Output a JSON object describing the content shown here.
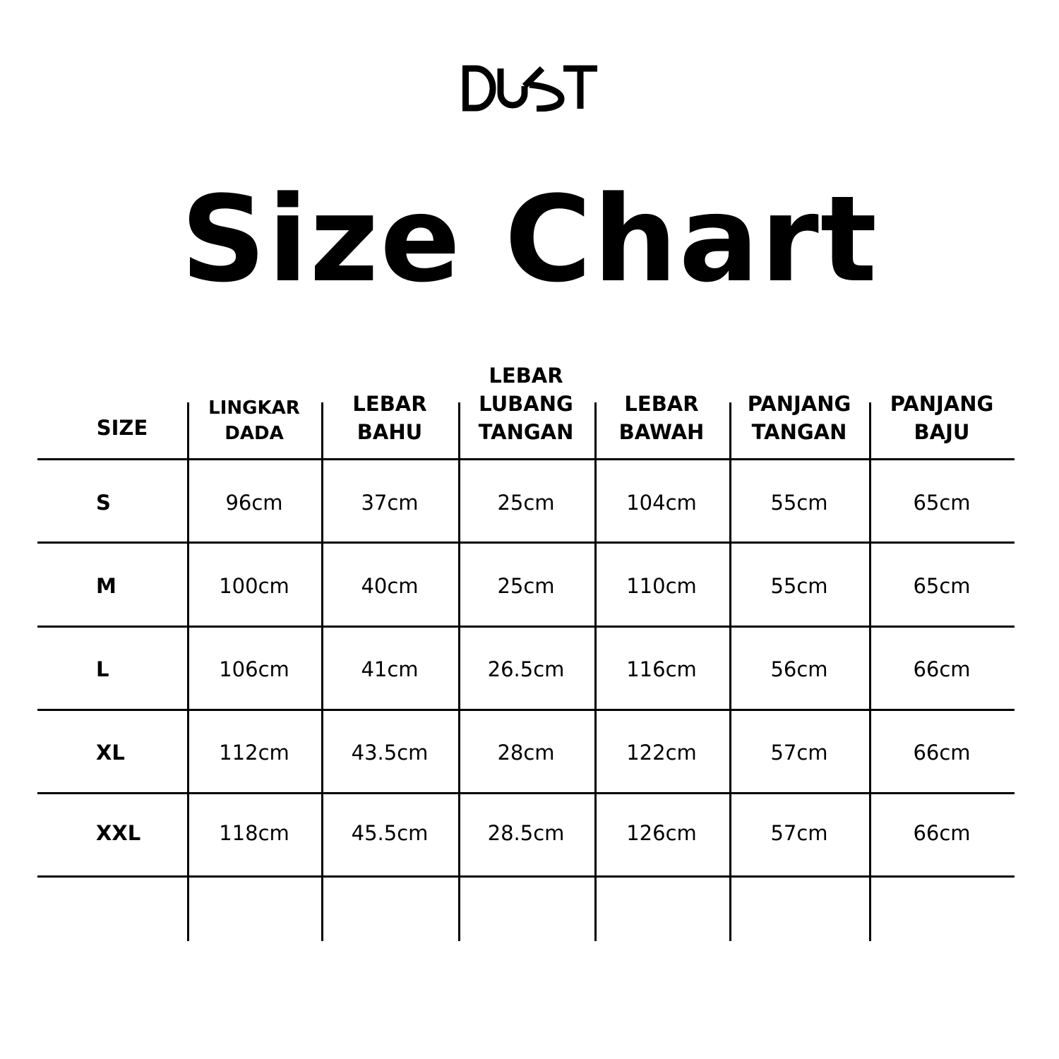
{
  "brand": {
    "logo_text": "DUST"
  },
  "title": "Size Chart",
  "table": {
    "headers": [
      "SIZE",
      "LINGKAR DADA",
      "LEBAR BAHU",
      "LEBAR LUBANG TANGAN",
      "LEBAR BAWAH",
      "PANJANG TANGAN",
      "PANJANG BAJU"
    ],
    "header_lines": [
      [
        "SIZE"
      ],
      [
        "LINGKAR",
        "DADA"
      ],
      [
        "LEBAR",
        "BAHU"
      ],
      [
        "LEBAR",
        "LUBANG",
        "TANGAN"
      ],
      [
        "LEBAR",
        "BAWAH"
      ],
      [
        "PANJANG",
        "TANGAN"
      ],
      [
        "PANJANG",
        "BAJU"
      ]
    ],
    "rows": [
      {
        "size": "S",
        "values": [
          "96cm",
          "37cm",
          "25cm",
          "104cm",
          "55cm",
          "65cm"
        ]
      },
      {
        "size": "M",
        "values": [
          "100cm",
          "40cm",
          "25cm",
          "110cm",
          "55cm",
          "65cm"
        ]
      },
      {
        "size": "L",
        "values": [
          "106cm",
          "41cm",
          "26.5cm",
          "116cm",
          "56cm",
          "66cm"
        ]
      },
      {
        "size": "XL",
        "values": [
          "112cm",
          "43.5cm",
          "28cm",
          "122cm",
          "57cm",
          "66cm"
        ]
      },
      {
        "size": "XXL",
        "values": [
          "118cm",
          "45.5cm",
          "28.5cm",
          "126cm",
          "57cm",
          "66cm"
        ]
      }
    ]
  }
}
